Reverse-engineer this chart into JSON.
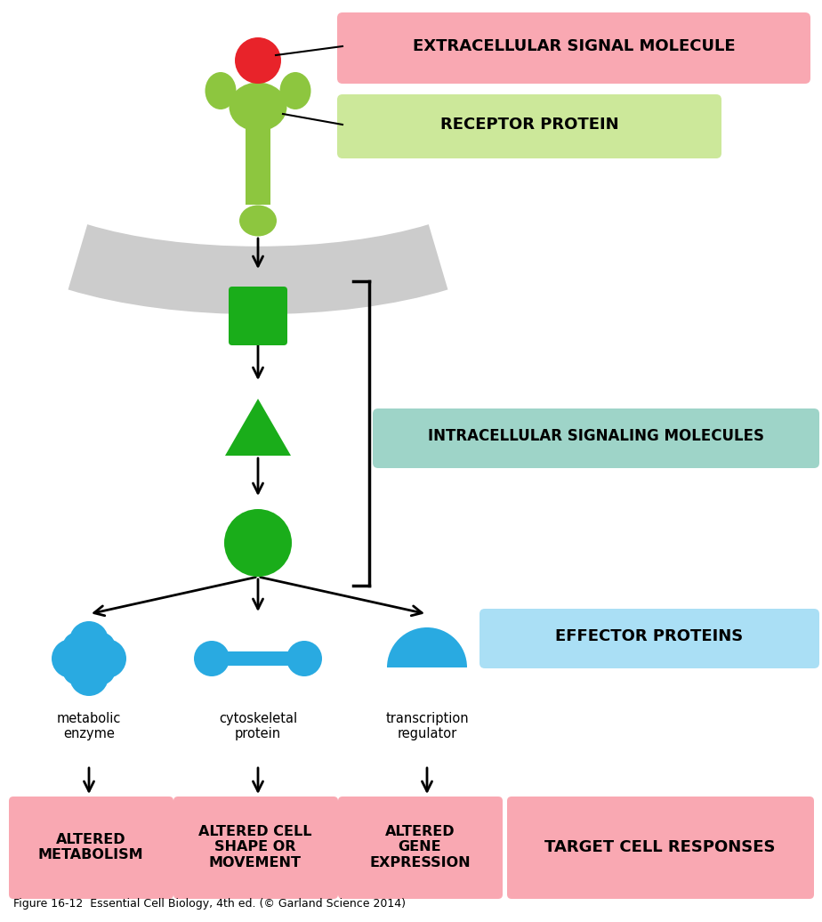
{
  "bg_color": "#ffffff",
  "green_dark": "#1aad1a",
  "green_light": "#8dc63f",
  "red_signal": "#e8232a",
  "blue_effector": "#29aae1",
  "pink_bg": "#f9a8b2",
  "light_green_label_bg": "#cce89a",
  "light_blue_label_bg": "#aadff5",
  "light_teal_label_bg": "#9ed4c8",
  "gray_membrane": "#cccccc",
  "label_extracellular": "EXTRACELLULAR SIGNAL MOLECULE",
  "label_receptor": "RECEPTOR PROTEIN",
  "label_intracellular": "INTRACELLULAR SIGNALING MOLECULES",
  "label_effector": "EFFECTOR PROTEINS",
  "label_target": "TARGET CELL RESPONSES",
  "label_metabolic": "metabolic\nenzyme",
  "label_cytoskeletal": "cytoskeletal\nprotein",
  "label_transcription": "transcription\nregulator",
  "label_altered_metabolism": "ALTERED\nMETABOLISM",
  "label_altered_cell": "ALTERED CELL\nSHAPE OR\nMOVEMENT",
  "label_altered_gene": "ALTERED\nGENE\nEXPRESSION",
  "figure_caption": "Figure 16-12  Essential Cell Biology, 4th ed. (© Garland Science 2014)"
}
